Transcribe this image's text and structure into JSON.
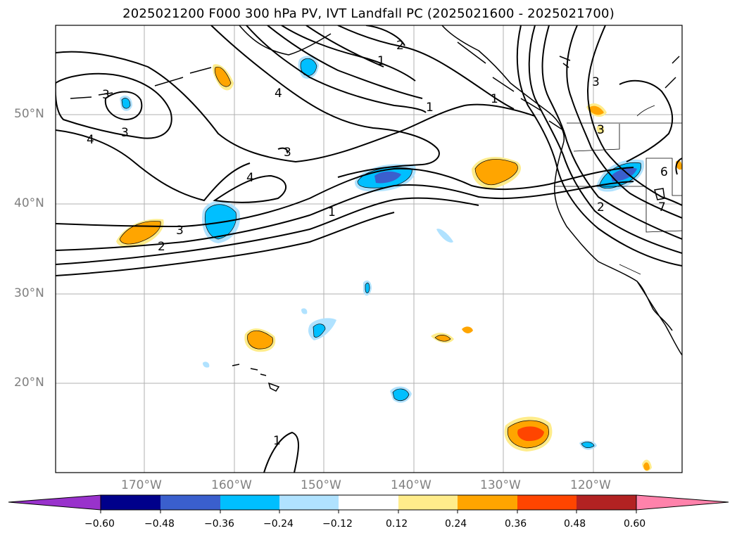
{
  "title": "2025021200 F000 300 hPa PV, IVT Landfall PC (2025021600 - 2025021700)",
  "lat_labels": [
    "50°N",
    "40°N",
    "30°N",
    "20°N"
  ],
  "lon_labels": [
    "170°W",
    "160°W",
    "150°W",
    "140°W",
    "130°W",
    "120°W"
  ],
  "colorbar": {
    "ticks": [
      "−0.60",
      "−0.48",
      "−0.36",
      "−0.24",
      "−0.12",
      "0.12",
      "0.24",
      "0.36",
      "0.48",
      "0.60"
    ],
    "colors": [
      "#9932cc",
      "#00008b",
      "#3a5fcd",
      "#00bfff",
      "#b0e2ff",
      "#ffffff",
      "#ffec8b",
      "#ffa500",
      "#ff4500",
      "#b22222",
      "#ff82ab"
    ]
  },
  "contour_labels": [
    "2",
    "1",
    "4",
    "3",
    "4",
    "3",
    "4",
    "3",
    "1",
    "3",
    "2",
    "1",
    "1",
    "3",
    "3",
    "2",
    "6",
    "7",
    "1"
  ],
  "colors": {
    "land": "#000000",
    "grid": "#b0b0b0",
    "contour": "#000000"
  }
}
